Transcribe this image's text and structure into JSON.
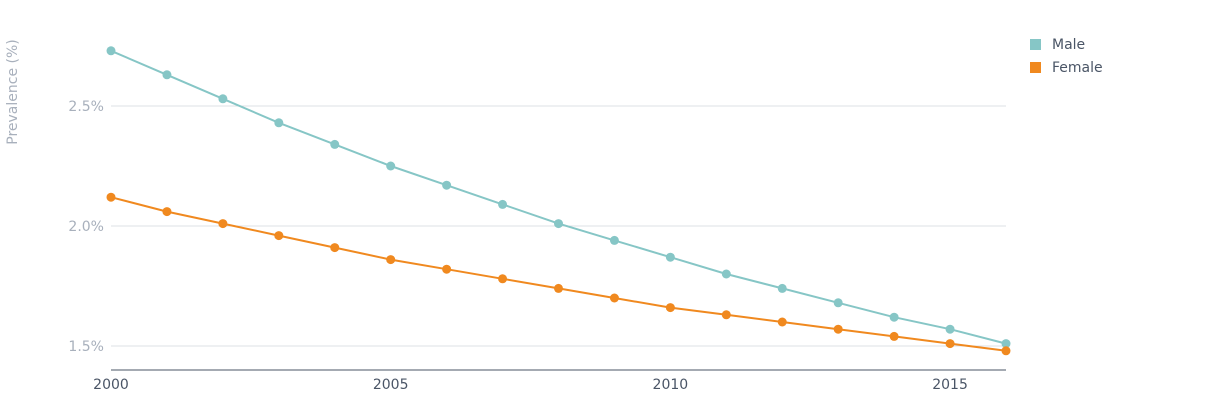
{
  "chart_data": {
    "type": "line",
    "ylabel": "Prevalence (%)",
    "xlabel": "",
    "x": [
      2000,
      2001,
      2002,
      2003,
      2004,
      2005,
      2006,
      2007,
      2008,
      2009,
      2010,
      2011,
      2012,
      2013,
      2014,
      2015,
      2016
    ],
    "xticks": [
      2000,
      2005,
      2010,
      2015
    ],
    "yticks": [
      1.5,
      2.0,
      2.5
    ],
    "ytick_labels": [
      "1.5%",
      "2.0%",
      "2.5%"
    ],
    "xlim": [
      2000,
      2016
    ],
    "ylim": [
      1.4,
      2.8
    ],
    "grid": true,
    "legend_position": "top-right",
    "series": [
      {
        "name": "Male",
        "color": "#86c6c6",
        "values": [
          2.73,
          2.63,
          2.53,
          2.43,
          2.34,
          2.25,
          2.17,
          2.09,
          2.01,
          1.94,
          1.87,
          1.8,
          1.74,
          1.68,
          1.62,
          1.57,
          1.51
        ]
      },
      {
        "name": "Female",
        "color": "#f0891f",
        "values": [
          2.12,
          2.06,
          2.01,
          1.96,
          1.91,
          1.86,
          1.82,
          1.78,
          1.74,
          1.7,
          1.66,
          1.63,
          1.6,
          1.57,
          1.54,
          1.51,
          1.48
        ]
      }
    ]
  }
}
